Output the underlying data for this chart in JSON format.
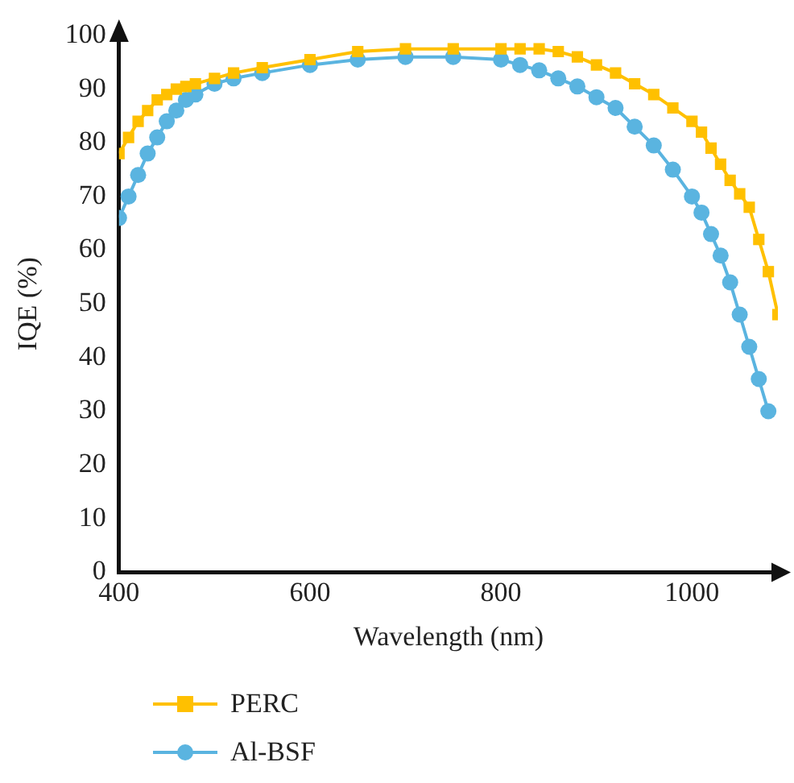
{
  "chart_data": {
    "type": "line",
    "xlabel": "Wavelength (nm)",
    "ylabel": "IQE (%)",
    "x": [
      400,
      410,
      420,
      430,
      440,
      450,
      460,
      470,
      480,
      500,
      520,
      550,
      600,
      650,
      700,
      750,
      800,
      820,
      840,
      860,
      880,
      900,
      920,
      940,
      960,
      980,
      1000,
      1010,
      1020,
      1030,
      1040,
      1050,
      1060,
      1070,
      1080,
      1090
    ],
    "series": [
      {
        "name": "PERC",
        "color": "#ffc000",
        "marker": "square",
        "values": [
          78,
          81,
          84,
          86,
          88,
          89,
          90,
          90.5,
          91,
          92,
          93,
          94,
          95.5,
          97,
          97.5,
          97.5,
          97.5,
          97.5,
          97.5,
          97,
          96,
          94.5,
          93,
          91,
          89,
          86.5,
          84,
          82,
          79,
          76,
          73,
          70.5,
          68,
          62,
          56,
          48
        ]
      },
      {
        "name": "Al-BSF",
        "color": "#5ab4e0",
        "marker": "circle",
        "values": [
          66,
          70,
          74,
          78,
          81,
          84,
          86,
          88,
          89,
          91,
          92,
          93,
          94.5,
          95.5,
          96,
          96,
          95.5,
          94.5,
          93.5,
          92,
          90.5,
          88.5,
          86.5,
          83,
          79.5,
          75,
          70,
          67,
          63,
          59,
          54,
          48,
          42,
          36,
          30,
          null
        ]
      }
    ],
    "xlim": [
      400,
      1090
    ],
    "xticks": [
      400,
      600,
      800,
      1000
    ],
    "ylim": [
      0,
      100
    ],
    "yticks": [
      0,
      10,
      20,
      30,
      40,
      50,
      60,
      70,
      80,
      90,
      100
    ],
    "grid": false,
    "legend": "bottom left",
    "line_style": "solid"
  }
}
